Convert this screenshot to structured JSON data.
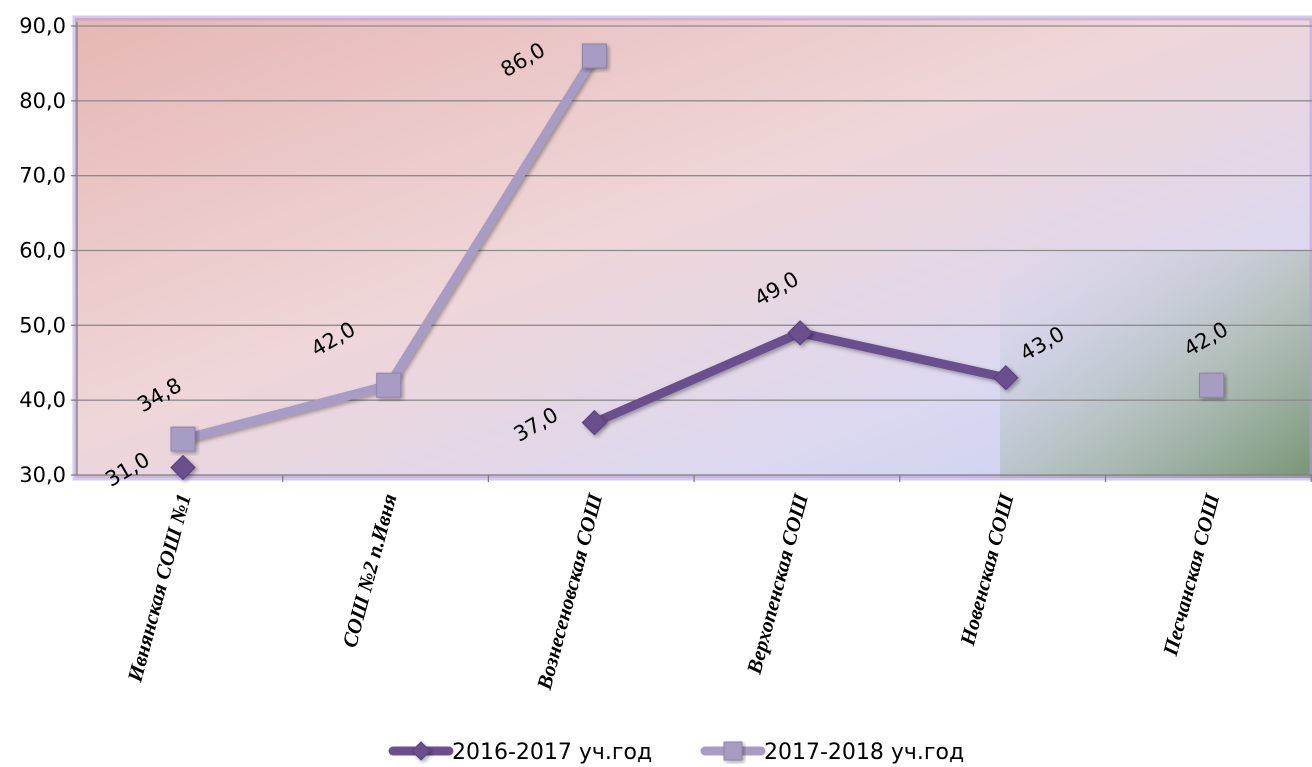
{
  "chart_data": {
    "type": "line",
    "categories": [
      "Ивнянская СОШ №1",
      "СОШ №2 п.Ивня",
      "Вознесеновская СОШ",
      "Верхопенская СОШ",
      "Новенская СОШ",
      "Песчанская СОШ"
    ],
    "series": [
      {
        "name": "2016-2017 уч.год",
        "values": [
          31.0,
          null,
          37.0,
          49.0,
          43.0,
          null
        ],
        "labels": [
          "31,0",
          null,
          "37,0",
          "49,0",
          "43,0",
          null
        ],
        "color": "#6b4f8f",
        "marker": "diamond"
      },
      {
        "name": "2017-2018 уч.год",
        "values": [
          34.8,
          42.0,
          86.0,
          null,
          null,
          42.0
        ],
        "labels": [
          "34,8",
          "42,0",
          "86,0",
          null,
          null,
          "42,0"
        ],
        "color": "#a79cc4",
        "marker": "square"
      }
    ],
    "yticks": [
      "30,0",
      "40,0",
      "50,0",
      "60,0",
      "70,0",
      "80,0",
      "90,0"
    ],
    "ylim": [
      30,
      90
    ],
    "ystep": 10,
    "grid": true,
    "legend_position": "bottom",
    "colors": {
      "plot_bg_start": "#e8b9b6",
      "plot_bg_mid": "#eadce6",
      "plot_bg_end": "#c9d3f2",
      "plot_border": "#a88fd4",
      "gridline": "#8c8c8c",
      "corner_shade": "#8aa37e"
    }
  }
}
